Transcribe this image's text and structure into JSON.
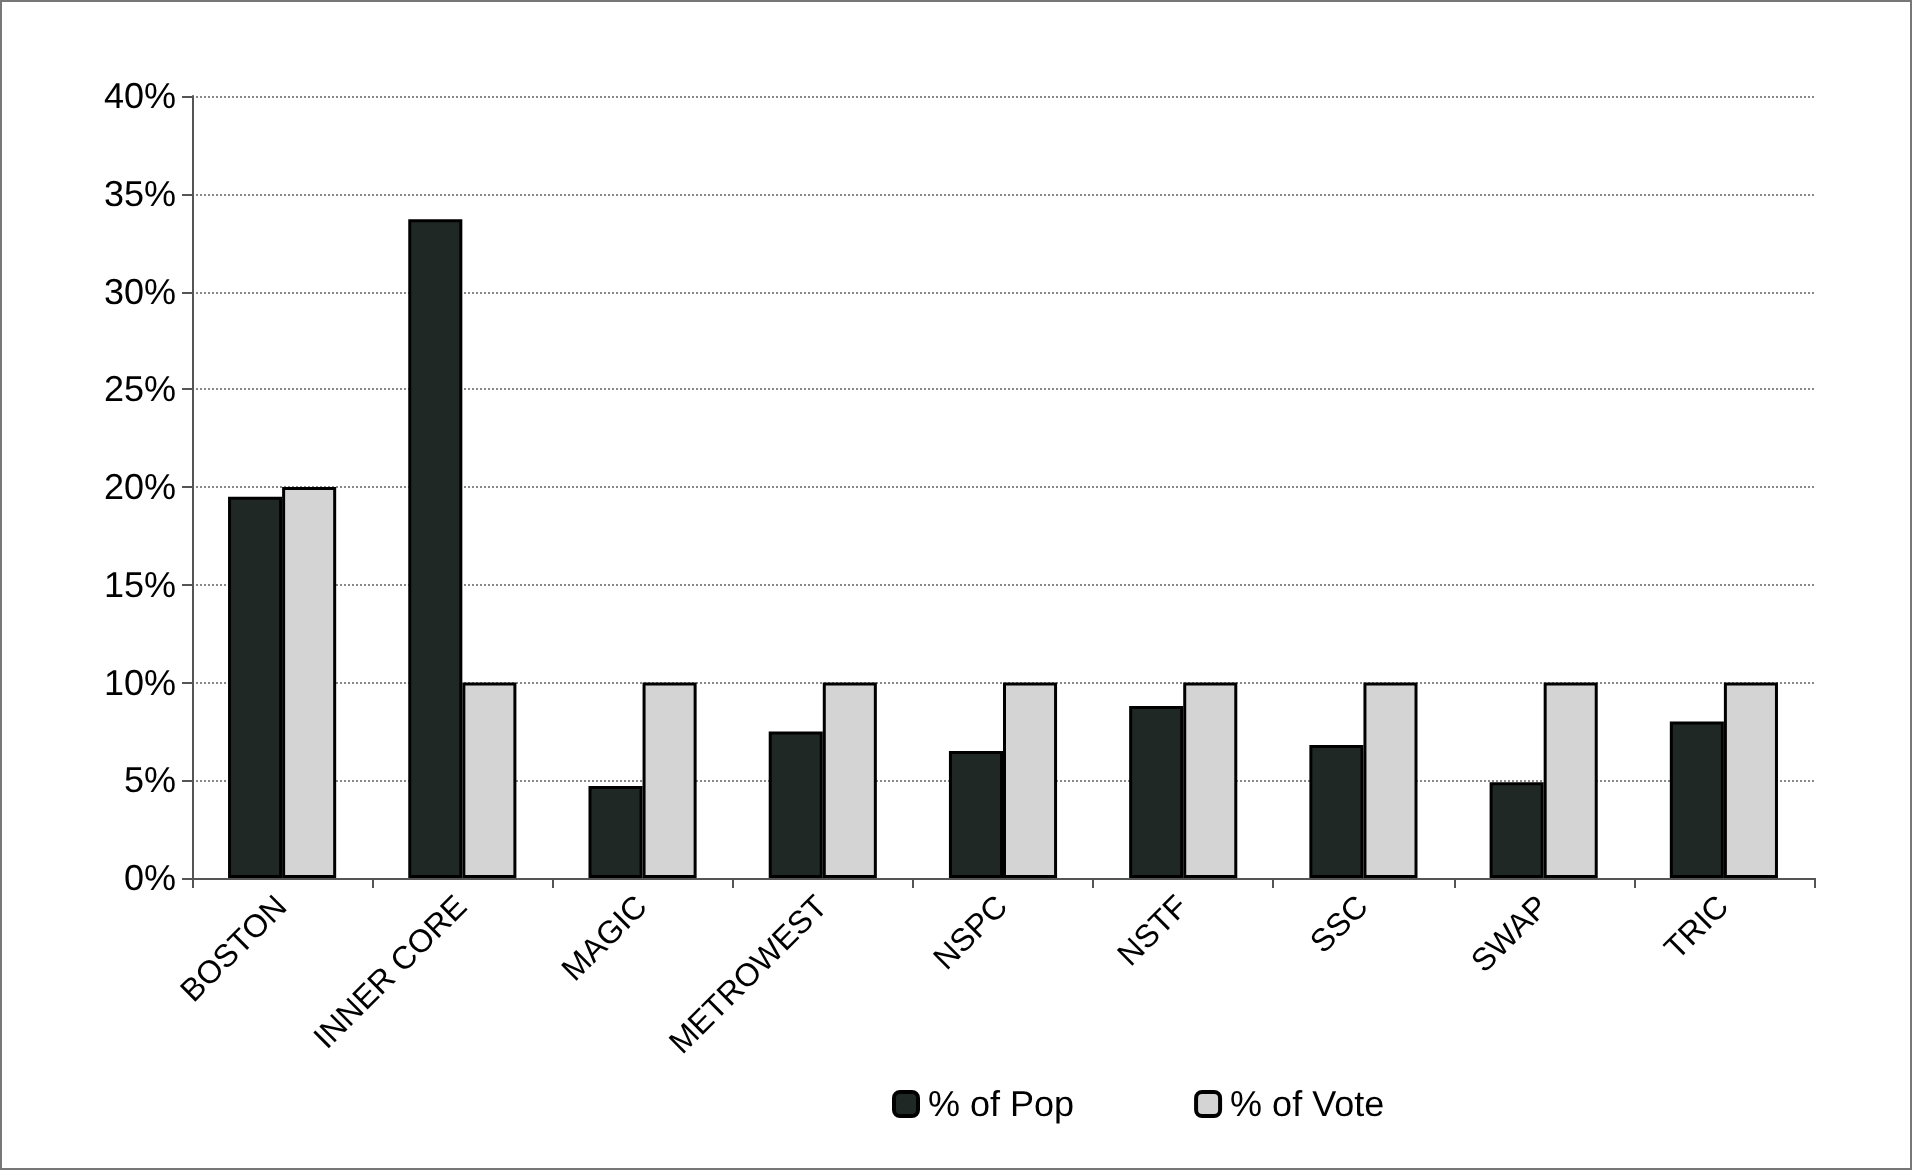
{
  "chart_data": {
    "type": "bar",
    "categories": [
      "BOSTON",
      "INNER CORE",
      "MAGIC",
      "METROWEST",
      "NSPC",
      "NSTF",
      "SSC",
      "SWAP",
      "TRIC"
    ],
    "series": [
      {
        "name": "% of Pop",
        "color": "#1f2824",
        "values": [
          19.5,
          33.7,
          4.7,
          7.5,
          6.5,
          8.8,
          6.8,
          4.9,
          8.0
        ]
      },
      {
        "name": "% of Vote",
        "color": "#d4d4d4",
        "values": [
          20,
          10,
          10,
          10,
          10,
          10,
          10,
          10,
          10
        ]
      }
    ],
    "ylim": [
      0,
      40
    ],
    "yticks": [
      {
        "value": 0,
        "label": "0%"
      },
      {
        "value": 5,
        "label": "5%"
      },
      {
        "value": 10,
        "label": "10%"
      },
      {
        "value": 15,
        "label": "15%"
      },
      {
        "value": 20,
        "label": "20%"
      },
      {
        "value": 25,
        "label": "25%"
      },
      {
        "value": 30,
        "label": "30%"
      },
      {
        "value": 35,
        "label": "35%"
      },
      {
        "value": 40,
        "label": "40%"
      }
    ],
    "grid": "y",
    "legend": "bottom"
  }
}
